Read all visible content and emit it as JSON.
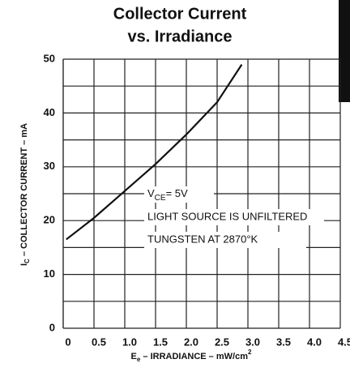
{
  "chart_data": {
    "type": "line",
    "title": [
      "Collector Current",
      "vs. Irradiance"
    ],
    "xlabel": {
      "main": "E",
      "sub": "e",
      "rest": " – IRRADIANCE – mW/cm",
      "sup": "2"
    },
    "ylabel": {
      "main": "I",
      "sub": "C",
      "rest": " – COLLECTOR CURRENT – mA"
    },
    "annotations": [
      {
        "main": "V",
        "sub": "CE",
        "rest": "= 5V"
      },
      {
        "text": "LIGHT SOURCE IS UNFILTERED"
      },
      {
        "text": "TUNGSTEN AT 2870°K"
      }
    ],
    "x": [
      0.05,
      0.5,
      1.0,
      1.5,
      2.0,
      2.5,
      2.9
    ],
    "series": [
      {
        "name": null,
        "color": "#111111",
        "values": [
          16.5,
          20.5,
          25.5,
          30.5,
          36,
          42,
          49
        ]
      }
    ],
    "xlim": [
      0,
      4.5
    ],
    "xticks": [
      0,
      0.5,
      {
        "value": 1,
        "label": "1.0"
      },
      1.5,
      {
        "value": 2,
        "label": "2.0"
      },
      2.5,
      {
        "value": 3,
        "label": "3.0"
      },
      3.5,
      {
        "value": 4,
        "label": "4.0"
      },
      4.5
    ],
    "ylim": [
      0,
      50
    ],
    "yticks": [
      0,
      10,
      20,
      30,
      40,
      50
    ],
    "ygrid": [
      0,
      5,
      10,
      15,
      20,
      25,
      30,
      35,
      40,
      45,
      50
    ],
    "grid": true
  }
}
